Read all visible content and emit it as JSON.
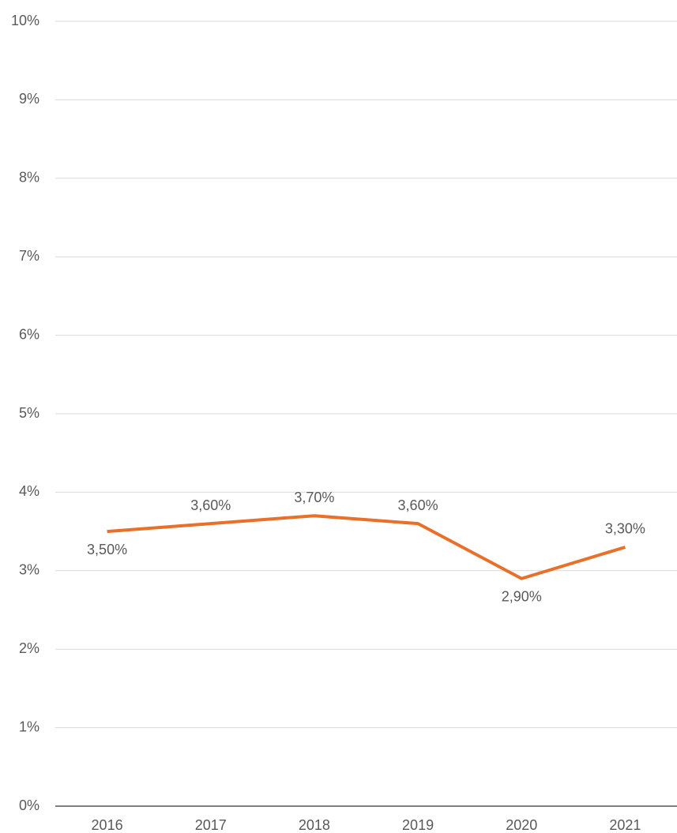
{
  "chart_data": {
    "type": "line",
    "categories": [
      "2016",
      "2017",
      "2018",
      "2019",
      "2020",
      "2021"
    ],
    "series": [
      {
        "name": null,
        "color": "#e8702a",
        "values": [
          3.5,
          3.6,
          3.7,
          3.6,
          2.9,
          3.3
        ],
        "value_labels": [
          "3,50%",
          "3,60%",
          "3,70%",
          "3,60%",
          "2,90%",
          "3,30%"
        ]
      }
    ],
    "ylim": [
      0,
      10
    ],
    "yticks": [
      {
        "value": 0,
        "label": "0%"
      },
      {
        "value": 1,
        "label": "1%"
      },
      {
        "value": 2,
        "label": "2%"
      },
      {
        "value": 3,
        "label": "3%"
      },
      {
        "value": 4,
        "label": "4%"
      },
      {
        "value": 5,
        "label": "5%"
      },
      {
        "value": 6,
        "label": "6%"
      },
      {
        "value": 7,
        "label": "7%"
      },
      {
        "value": 8,
        "label": "8%"
      },
      {
        "value": 9,
        "label": "9%"
      },
      {
        "value": 10,
        "label": "10%"
      }
    ],
    "grid": true
  }
}
